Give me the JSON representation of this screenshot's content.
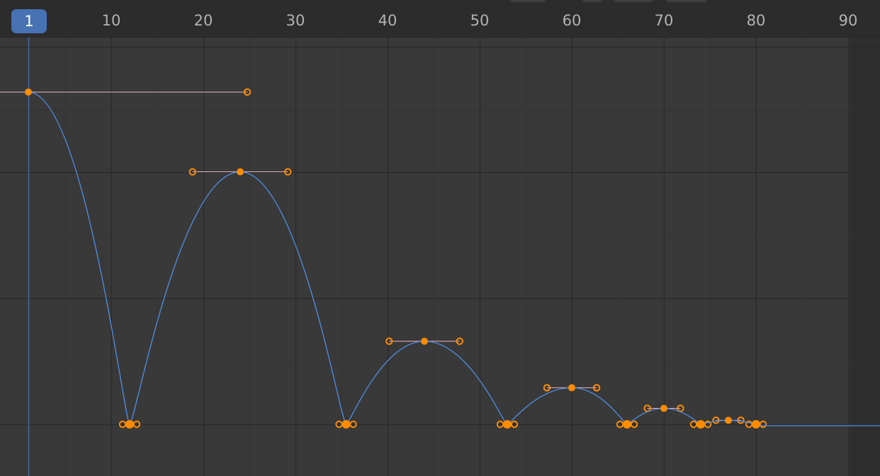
{
  "editor": {
    "current_frame": "1",
    "frame_labels": [
      "10",
      "20",
      "30",
      "40",
      "50",
      "60",
      "70",
      "80",
      "90"
    ],
    "frame_range_start": 1,
    "frame_range_end": 90
  },
  "colors": {
    "background": "#393939",
    "ruler_bg": "#2c2c2c",
    "grid_major": "#2a2a2a",
    "grid_minor": "#333333",
    "curve": "#4d8fe6",
    "handle_line": "#f0b5c0",
    "keyframe": "#ff8c00",
    "playhead": "#4772b3"
  },
  "fcurve": {
    "keyframes": [
      {
        "frame": 1,
        "value": 1.0
      },
      {
        "frame": 12,
        "value": 0.0
      },
      {
        "frame": 24,
        "value": 0.76
      },
      {
        "frame": 35.5,
        "value": 0.0
      },
      {
        "frame": 44,
        "value": 0.25
      },
      {
        "frame": 53,
        "value": 0.0
      },
      {
        "frame": 60,
        "value": 0.11
      },
      {
        "frame": 66,
        "value": 0.0
      },
      {
        "frame": 70,
        "value": 0.048
      },
      {
        "frame": 74,
        "value": 0.0
      },
      {
        "frame": 77,
        "value": 0.012
      },
      {
        "frame": 80,
        "value": 0.0
      }
    ]
  }
}
